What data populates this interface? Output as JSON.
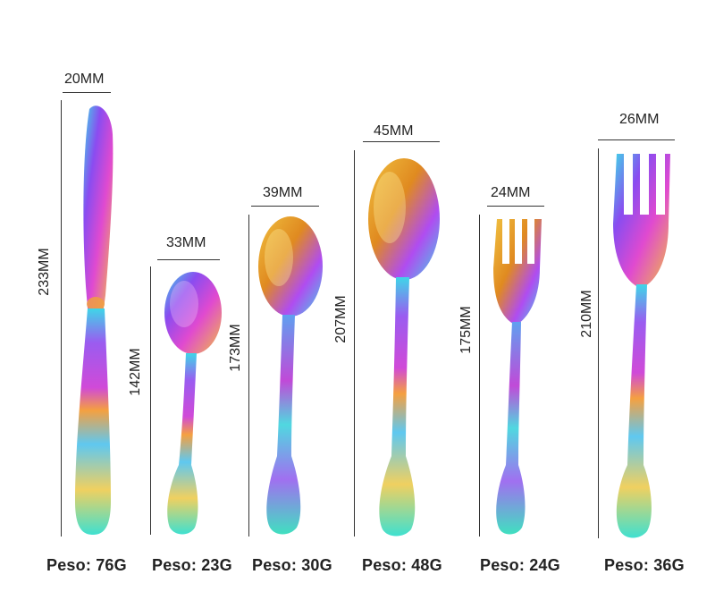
{
  "items": [
    {
      "name": "knife",
      "width": "20MM",
      "length": "233MM",
      "weight": "Peso: 76G"
    },
    {
      "name": "teaspoon",
      "width": "33MM",
      "length": "142MM",
      "weight": "Peso: 23G"
    },
    {
      "name": "dessert-spoon",
      "width": "39MM",
      "length": "173MM",
      "weight": "Peso: 30G"
    },
    {
      "name": "table-spoon",
      "width": "45MM",
      "length": "207MM",
      "weight": "Peso: 48G"
    },
    {
      "name": "dessert-fork",
      "width": "24MM",
      "length": "175MM",
      "weight": "Peso: 24G"
    },
    {
      "name": "table-fork",
      "width": "26MM",
      "length": "210MM",
      "weight": "Peso: 36G"
    }
  ],
  "colors": {
    "iridescent": [
      "#3fd6e8",
      "#b04cf0",
      "#f5c542",
      "#e88a2a",
      "#4fe0c0",
      "#d04ad8"
    ]
  }
}
